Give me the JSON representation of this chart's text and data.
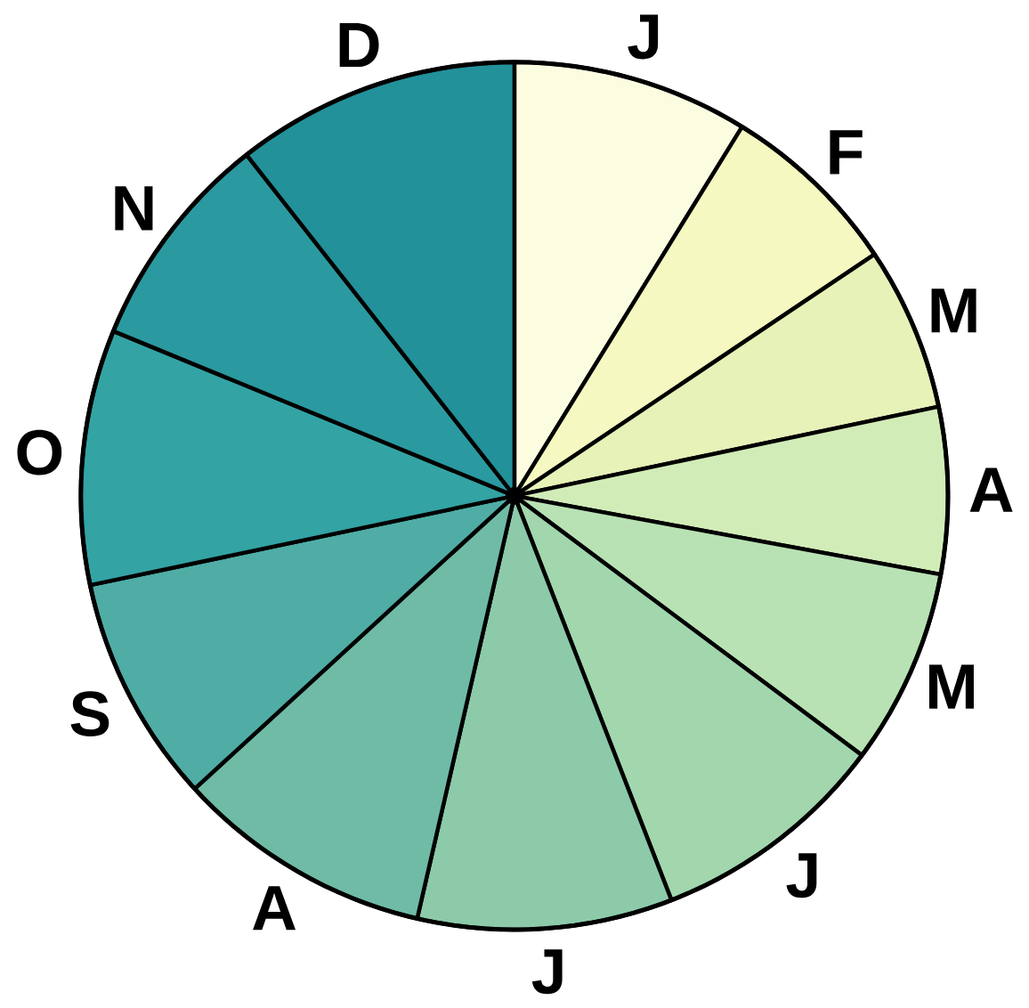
{
  "chart_data": {
    "type": "pie",
    "categories": [
      "J",
      "F",
      "M",
      "A",
      "M",
      "J",
      "J",
      "A",
      "S",
      "O",
      "N",
      "D"
    ],
    "values": [
      8.8,
      6.8,
      6.1,
      6.2,
      7.3,
      8.9,
      9.5,
      9.6,
      8.5,
      9.5,
      8.2,
      10.6
    ],
    "colors": [
      "#fcfde0",
      "#f5f8c0",
      "#e6f2b8",
      "#d2ecb8",
      "#b8e2b4",
      "#a2d6ad",
      "#8ccaaa",
      "#6fbba6",
      "#4fada6",
      "#33a3a4",
      "#2a9aa0",
      "#22919a"
    ]
  }
}
